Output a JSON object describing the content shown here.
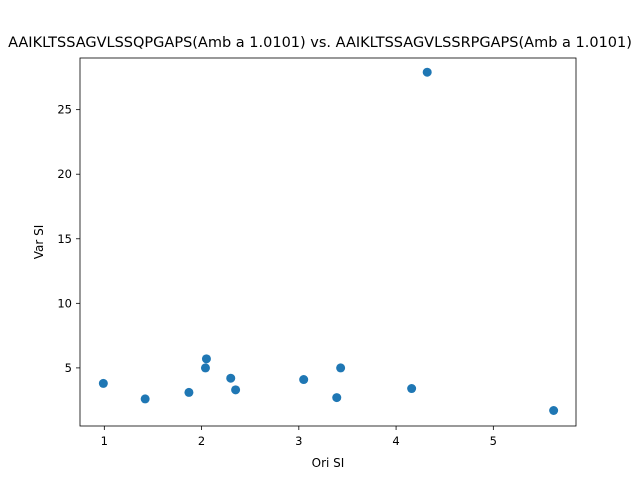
{
  "chart_data": {
    "type": "scatter",
    "title": "AAIKLTSSAGVLSSQPGAPS(Amb a 1.0101) vs. AAIKLTSSAGVLSSRPGAPS(Amb a 1.0101)",
    "xlabel": "Ori SI",
    "ylabel": "Var SI",
    "xlim": [
      0.75,
      5.85
    ],
    "ylim": [
      0.5,
      29.0
    ],
    "x_ticks": [
      1,
      2,
      3,
      4,
      5
    ],
    "y_ticks": [
      5,
      10,
      15,
      20,
      25
    ],
    "x_tick_labels": [
      "1",
      "2",
      "3",
      "4",
      "5"
    ],
    "y_tick_labels": [
      "5",
      "10",
      "15",
      "20",
      "25"
    ],
    "grid": false,
    "color": "#1f77b4",
    "points": [
      {
        "x": 0.99,
        "y": 3.8
      },
      {
        "x": 1.42,
        "y": 2.6
      },
      {
        "x": 1.87,
        "y": 3.1
      },
      {
        "x": 2.05,
        "y": 5.7
      },
      {
        "x": 2.04,
        "y": 5.0
      },
      {
        "x": 2.3,
        "y": 4.2
      },
      {
        "x": 2.35,
        "y": 3.3
      },
      {
        "x": 3.05,
        "y": 4.1
      },
      {
        "x": 3.39,
        "y": 2.7
      },
      {
        "x": 3.43,
        "y": 5.0
      },
      {
        "x": 4.16,
        "y": 3.4
      },
      {
        "x": 4.32,
        "y": 27.9
      },
      {
        "x": 5.62,
        "y": 1.7
      }
    ]
  }
}
